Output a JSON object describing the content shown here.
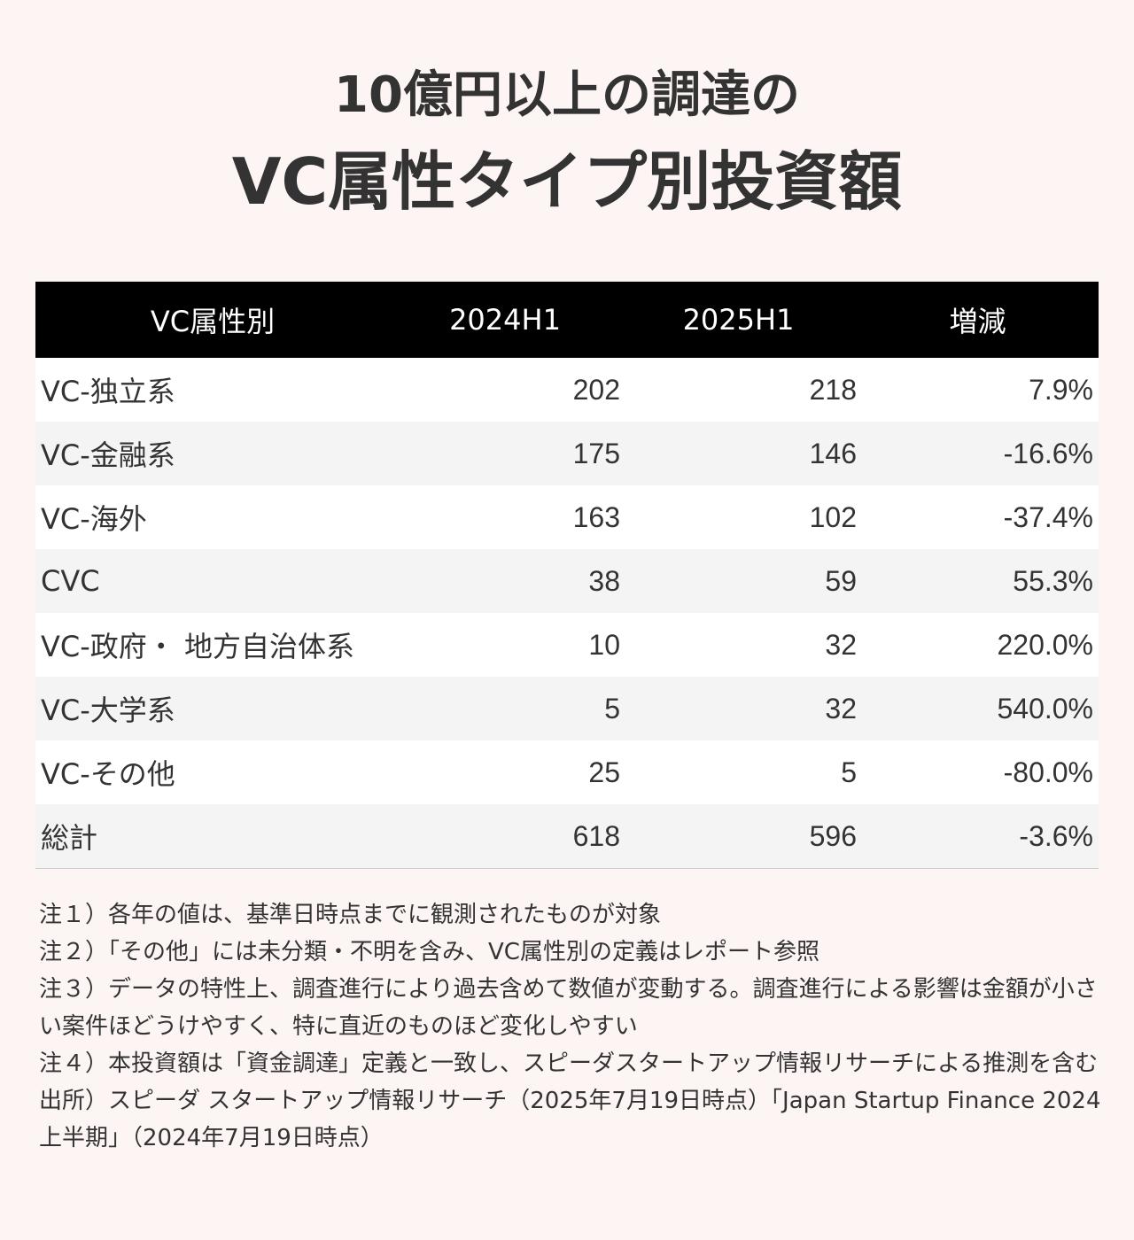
{
  "title_line1": "10億円以上の調達の",
  "title_line2": "VC属性タイプ別投資額",
  "chart_data": {
    "type": "table",
    "columns": [
      "VC属性別",
      "2024H1",
      "2025H1",
      "増減"
    ],
    "rows": [
      {
        "label": "VC-独立系",
        "v2024": "202",
        "v2025": "218",
        "change": "7.9%"
      },
      {
        "label": "VC-金融系",
        "v2024": "175",
        "v2025": "146",
        "change": "-16.6%"
      },
      {
        "label": "VC-海外",
        "v2024": "163",
        "v2025": "102",
        "change": "-37.4%"
      },
      {
        "label": "CVC",
        "v2024": "38",
        "v2025": "59",
        "change": "55.3%"
      },
      {
        "label": "VC-政府・ 地方自治体系",
        "v2024": "10",
        "v2025": "32",
        "change": "220.0%"
      },
      {
        "label": "VC-大学系",
        "v2024": "5",
        "v2025": "32",
        "change": "540.0%"
      },
      {
        "label": "VC-その他",
        "v2024": "25",
        "v2025": "5",
        "change": "-80.0%"
      },
      {
        "label": "総計",
        "v2024": "618",
        "v2025": "596",
        "change": "-3.6%"
      }
    ]
  },
  "notes": [
    "注１）各年の値は、基準日時点までに観測されたものが対象",
    "注２）「その他」には未分類・不明を含み、VC属性別の定義はレポート参照",
    "注３）データの特性上、調査進行により過去含めて数値が変動する。調査進行による影響は金額が小さい案件ほどうけやすく、特に直近のものほど変化しやすい",
    "注４）本投資額は「資金調達」定義と一致し、スピーダスタートアップ情報リサーチによる推測を含む",
    "出所）スピーダ スタートアップ情報リサーチ（2025年7月19日時点）「Japan Startup Finance 2024上半期」（2024年7月19日時点）"
  ],
  "colors": {
    "background": "#fdf5f3",
    "header_bg": "#000000",
    "header_text": "#ffffff",
    "row_alt": "#f4f4f4",
    "text": "#333333"
  }
}
